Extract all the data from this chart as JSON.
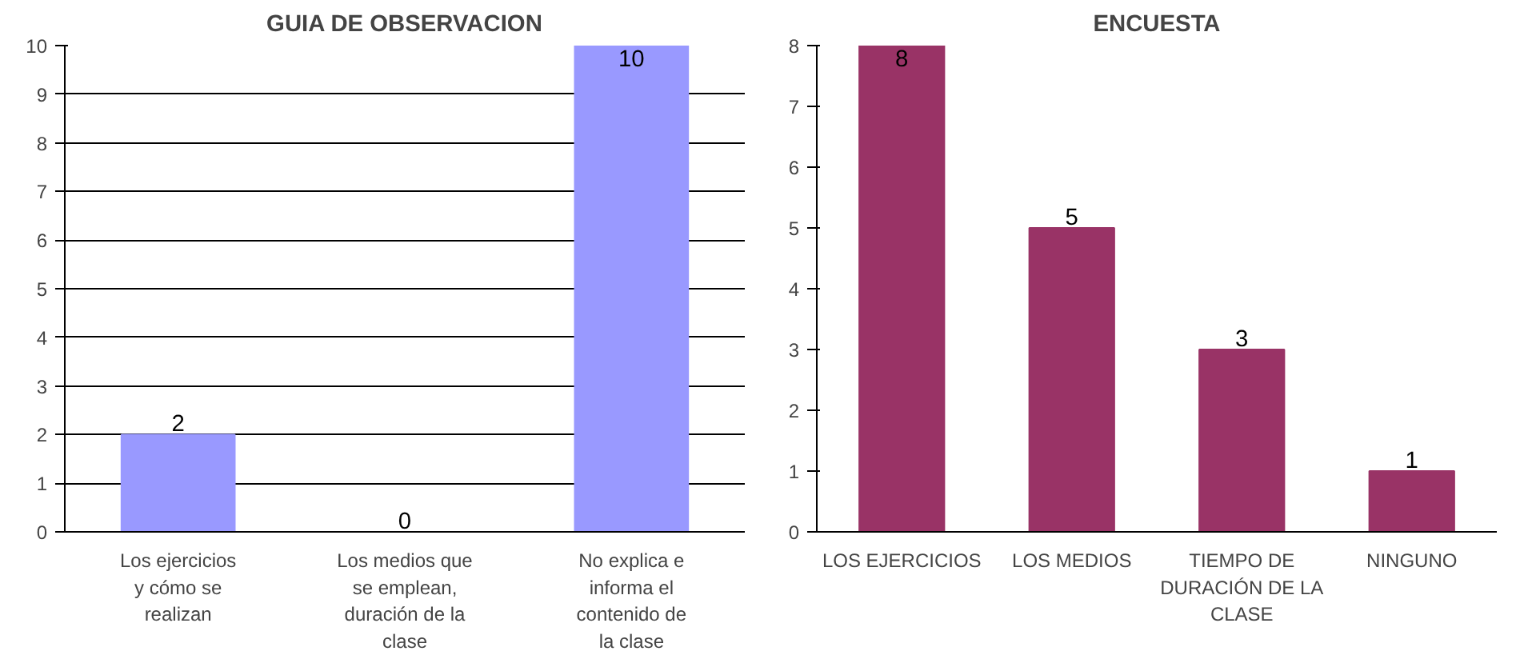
{
  "chart_data": [
    {
      "type": "bar",
      "title": "GUIA DE OBSERVACION",
      "categories": [
        "Los ejercicios y cómo se realizan",
        "Los medios que se emplean, duración de la clase",
        "No explica e informa el contenido de la clase"
      ],
      "values": [
        2,
        0,
        10
      ],
      "color": "#9999ff",
      "ylim": [
        0,
        10
      ],
      "yticks": [
        0,
        1,
        2,
        3,
        4,
        5,
        6,
        7,
        8,
        9,
        10
      ],
      "grid": "y",
      "data_labels": true
    },
    {
      "type": "bar",
      "title": "ENCUESTA",
      "categories": [
        "LOS EJERCICIOS",
        "LOS MEDIOS",
        "TIEMPO DE DURACIÓN DE LA CLASE",
        "NINGUNO"
      ],
      "values": [
        8,
        5,
        3,
        1
      ],
      "color": "#993366",
      "ylim": [
        0,
        8
      ],
      "yticks": [
        0,
        1,
        2,
        3,
        4,
        5,
        6,
        7,
        8
      ],
      "grid": false,
      "data_labels": true
    }
  ]
}
